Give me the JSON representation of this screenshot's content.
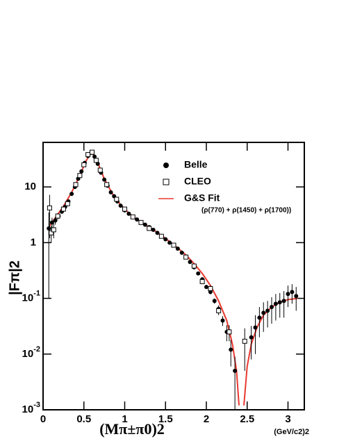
{
  "chart_data": {
    "type": "scatter",
    "log_y": true,
    "xlim": [
      0,
      3.2
    ],
    "ylim": [
      0.001,
      63
    ],
    "xticks": [
      0,
      0.5,
      1,
      1.5,
      2,
      2.5,
      3
    ],
    "yticks": [
      {
        "value": 0.001,
        "label": "10-3"
      },
      {
        "value": 0.01,
        "label": "10-2"
      },
      {
        "value": 0.1,
        "label": "10-1"
      },
      {
        "value": 1,
        "label": "1"
      },
      {
        "value": 10,
        "label": "10"
      }
    ],
    "xlabel": "(Mπ±π0)2",
    "xunit": "(GeV/c2)2",
    "ylabel": "|Fπ|2",
    "legend_note": "(ρ(770) + ρ(1450) + ρ(1700))",
    "series": [
      {
        "name": "Belle",
        "type": "scatter",
        "marker": "dot",
        "color": "#000000",
        "x": [
          0.07,
          0.11,
          0.15,
          0.19,
          0.23,
          0.27,
          0.31,
          0.35,
          0.39,
          0.43,
          0.47,
          0.51,
          0.55,
          0.59,
          0.63,
          0.67,
          0.71,
          0.75,
          0.79,
          0.83,
          0.87,
          0.91,
          0.95,
          1.0,
          1.05,
          1.1,
          1.15,
          1.2,
          1.25,
          1.3,
          1.35,
          1.4,
          1.45,
          1.5,
          1.55,
          1.6,
          1.65,
          1.7,
          1.75,
          1.8,
          1.85,
          1.9,
          1.95,
          2.0,
          2.05,
          2.1,
          2.15,
          2.2,
          2.25,
          2.3,
          2.35,
          2.55,
          2.6,
          2.65,
          2.7,
          2.75,
          2.8,
          2.85,
          2.9,
          2.95,
          3.0,
          3.05,
          3.1
        ],
        "values": [
          1.8,
          2.3,
          2.5,
          3.0,
          3.6,
          4.4,
          5.5,
          7.5,
          10,
          14,
          19,
          27,
          36,
          41,
          35,
          26,
          18,
          13.5,
          10.5,
          8,
          6.8,
          5.5,
          4.6,
          3.8,
          3.3,
          2.9,
          2.6,
          2.3,
          2.1,
          1.9,
          1.7,
          1.5,
          1.3,
          1.15,
          1.0,
          0.9,
          0.78,
          0.66,
          0.56,
          0.45,
          0.36,
          0.28,
          0.22,
          0.16,
          0.13,
          0.09,
          0.065,
          0.04,
          0.025,
          0.012,
          0.005,
          0.02,
          0.03,
          0.045,
          0.055,
          0.06,
          0.07,
          0.08,
          0.085,
          0.09,
          0.12,
          0.13,
          0.11
        ],
        "errors": [
          1.7,
          0.5,
          0.4,
          0.3,
          0.3,
          0.3,
          0.3,
          0.4,
          0.5,
          0.6,
          0.8,
          1,
          1.2,
          1.4,
          1.2,
          1,
          0.7,
          0.5,
          0.4,
          0.3,
          0.25,
          0.2,
          0.15,
          0.12,
          0.1,
          0.08,
          0.07,
          0.06,
          0.05,
          0.05,
          0.04,
          0.04,
          0.03,
          0.03,
          0.03,
          0.03,
          0.02,
          0.02,
          0.02,
          0.02,
          0.02,
          0.015,
          0.015,
          0.012,
          0.012,
          0.01,
          0.01,
          0.008,
          0.008,
          0.006,
          0.004,
          0.012,
          0.02,
          0.025,
          0.03,
          0.03,
          0.035,
          0.04,
          0.04,
          0.045,
          0.05,
          0.05,
          0.05
        ]
      },
      {
        "name": "CLEO",
        "type": "scatter",
        "marker": "square",
        "color": "#000000",
        "x": [
          0.08,
          0.1,
          0.13,
          0.18,
          0.25,
          0.3,
          0.4,
          0.45,
          0.5,
          0.55,
          0.6,
          0.65,
          0.7,
          0.78,
          0.9,
          1.0,
          1.1,
          1.2,
          1.3,
          1.45,
          1.6,
          1.75,
          1.85,
          1.95,
          2.05,
          2.15,
          2.28,
          2.47
        ],
        "values": [
          4.2,
          1.5,
          1.7,
          3.0,
          4.0,
          5.0,
          11,
          16,
          25,
          38,
          42,
          30,
          20,
          11,
          6,
          4.0,
          2.9,
          2.3,
          1.8,
          1.3,
          0.9,
          0.55,
          0.38,
          0.2,
          0.15,
          0.06,
          0.025,
          0.017
        ],
        "errors": [
          3,
          0.5,
          0.5,
          0.4,
          0.4,
          0.4,
          0.8,
          1,
          1.5,
          2,
          2,
          1.5,
          1,
          0.6,
          0.3,
          0.2,
          0.15,
          0.12,
          0.1,
          0.08,
          0.06,
          0.04,
          0.03,
          0.02,
          0.02,
          0.01,
          0.008,
          0.012
        ]
      },
      {
        "name": "G&S Fit",
        "type": "line",
        "color": "#e8382f",
        "x": [
          0.08,
          0.15,
          0.25,
          0.35,
          0.45,
          0.52,
          0.58,
          0.62,
          0.68,
          0.75,
          0.85,
          0.95,
          1.05,
          1.15,
          1.25,
          1.35,
          1.45,
          1.55,
          1.65,
          1.75,
          1.85,
          1.95,
          2.05,
          2.15,
          2.25,
          2.32,
          2.37,
          2.4,
          2.43,
          2.46,
          2.5,
          2.55,
          2.62,
          2.7,
          2.8,
          2.9,
          3.0,
          3.12
        ],
        "values": [
          2.0,
          2.8,
          4.5,
          8,
          16,
          28,
          40,
          38,
          25,
          14,
          7.5,
          4.8,
          3.4,
          2.6,
          2.1,
          1.7,
          1.35,
          1.05,
          0.8,
          0.6,
          0.42,
          0.28,
          0.17,
          0.09,
          0.04,
          0.015,
          0.005,
          0.0012,
          null,
          0.0012,
          0.006,
          0.015,
          0.03,
          0.05,
          0.07,
          0.085,
          0.095,
          0.1
        ]
      }
    ]
  }
}
